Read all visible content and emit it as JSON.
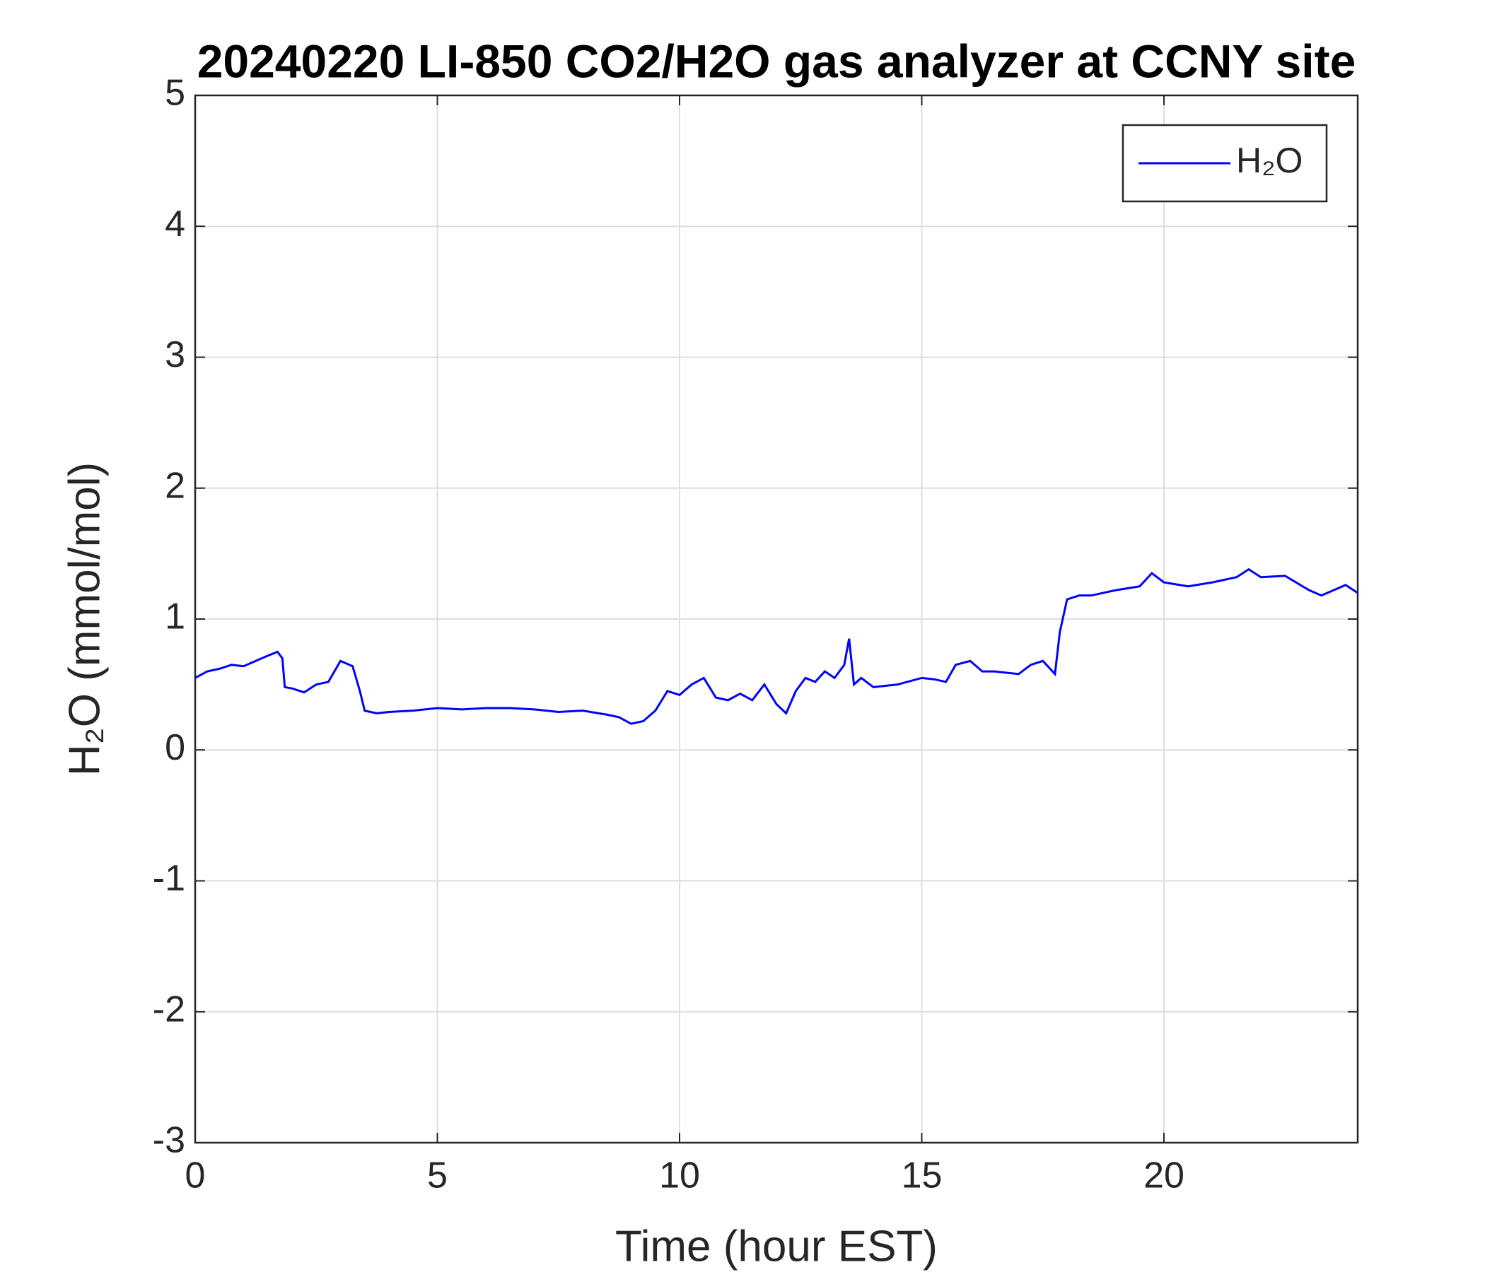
{
  "chart_data": {
    "type": "line",
    "title": "20240220 LI-850 CO2/H2O gas analyzer at CCNY site",
    "x_label": "Time (hour EST)",
    "y_label": "H₂O (mmol/mol)",
    "x": [
      0,
      0.25,
      0.5,
      0.75,
      1.0,
      1.25,
      1.5,
      1.7,
      1.8,
      1.85,
      2.0,
      2.25,
      2.5,
      2.75,
      3.0,
      3.25,
      3.4,
      3.5,
      3.75,
      4.0,
      4.5,
      5.0,
      5.5,
      6.0,
      6.5,
      7.0,
      7.5,
      8.0,
      8.5,
      8.75,
      9.0,
      9.25,
      9.5,
      9.75,
      10.0,
      10.25,
      10.5,
      10.75,
      11.0,
      11.25,
      11.5,
      11.75,
      12.0,
      12.2,
      12.4,
      12.6,
      12.8,
      13.0,
      13.2,
      13.4,
      13.5,
      13.6,
      13.75,
      14.0,
      14.5,
      15.0,
      15.25,
      15.5,
      15.7,
      16.0,
      16.25,
      16.5,
      17.0,
      17.25,
      17.5,
      17.75,
      17.85,
      18.0,
      18.25,
      18.5,
      18.75,
      19.0,
      19.5,
      19.75,
      20.0,
      20.5,
      21.0,
      21.5,
      21.75,
      22.0,
      22.5,
      23.0,
      23.25,
      23.5,
      23.75,
      24.0
    ],
    "series": [
      {
        "name": "H₂O",
        "color": "#0000ff",
        "values": [
          0.55,
          0.6,
          0.62,
          0.65,
          0.64,
          0.68,
          0.72,
          0.75,
          0.7,
          0.48,
          0.47,
          0.44,
          0.5,
          0.52,
          0.68,
          0.64,
          0.45,
          0.3,
          0.28,
          0.29,
          0.3,
          0.32,
          0.31,
          0.32,
          0.32,
          0.31,
          0.29,
          0.3,
          0.27,
          0.25,
          0.2,
          0.22,
          0.3,
          0.45,
          0.42,
          0.5,
          0.55,
          0.4,
          0.38,
          0.43,
          0.38,
          0.5,
          0.35,
          0.28,
          0.45,
          0.55,
          0.52,
          0.6,
          0.55,
          0.65,
          0.85,
          0.5,
          0.55,
          0.48,
          0.5,
          0.55,
          0.54,
          0.52,
          0.65,
          0.68,
          0.6,
          0.6,
          0.58,
          0.65,
          0.68,
          0.58,
          0.9,
          1.15,
          1.18,
          1.18,
          1.2,
          1.22,
          1.25,
          1.35,
          1.28,
          1.25,
          1.28,
          1.32,
          1.38,
          1.32,
          1.33,
          1.22,
          1.18,
          1.22,
          1.26,
          1.2
        ]
      }
    ],
    "xlim": [
      0,
      24
    ],
    "xticks": [
      0,
      5,
      10,
      15,
      20
    ],
    "ylim": [
      -3,
      5
    ],
    "yticks": [
      -3,
      -2,
      -1,
      0,
      1,
      2,
      3,
      4,
      5
    ],
    "grid": true,
    "legend": "top-right"
  }
}
